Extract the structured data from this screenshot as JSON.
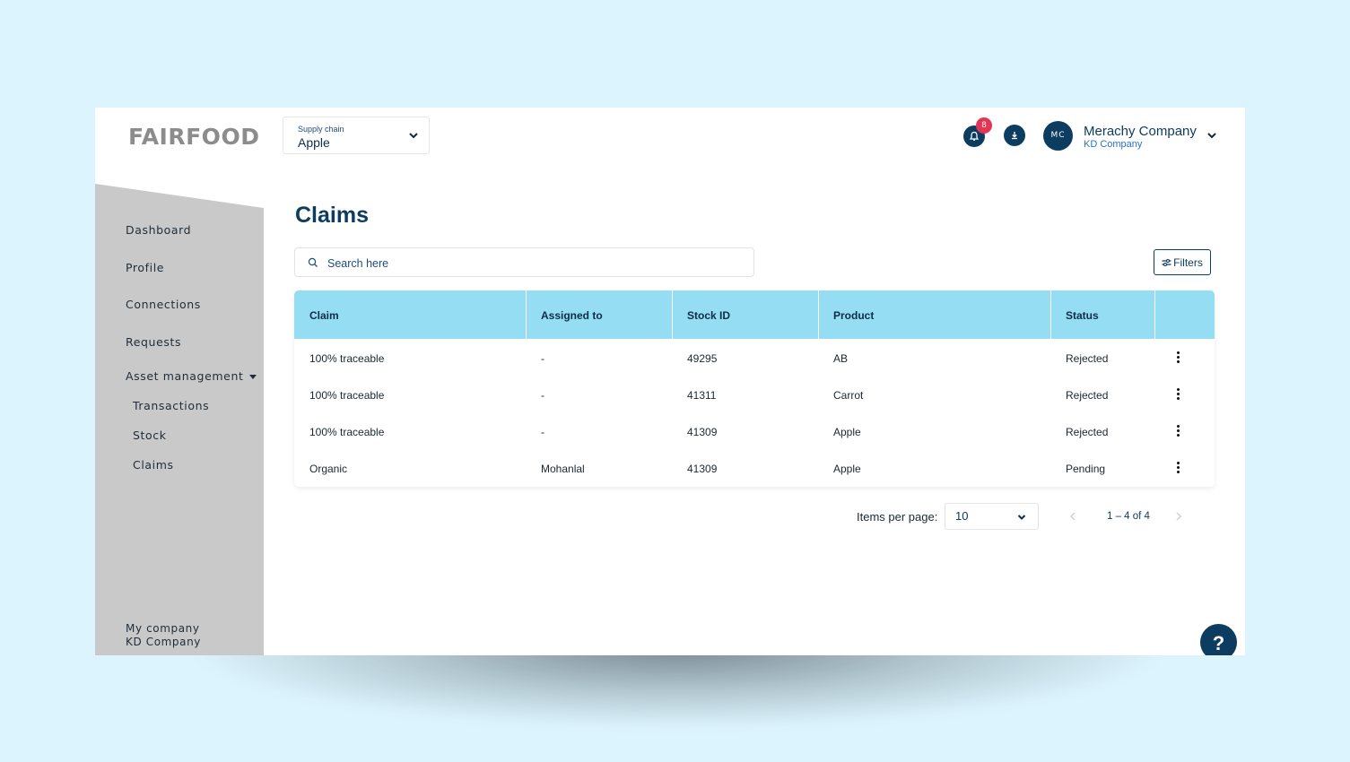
{
  "brand": {
    "logo_text": "FAIRFOOD"
  },
  "supply_chain": {
    "label": "Supply chain",
    "value": "Apple"
  },
  "header": {
    "notification_count": "8",
    "avatar_initials": "MC",
    "company_name": "Merachy Company",
    "company_sub": "KD Company"
  },
  "sidebar": {
    "items": [
      {
        "label": "Dashboard"
      },
      {
        "label": "Profile"
      },
      {
        "label": "Connections"
      },
      {
        "label": "Requests"
      },
      {
        "label": "Asset management"
      },
      {
        "label": "Transactions"
      },
      {
        "label": "Stock"
      },
      {
        "label": "Claims"
      }
    ],
    "footer_label": "My company",
    "footer_company": "KD Company"
  },
  "main": {
    "title": "Claims",
    "search_placeholder": "Search here",
    "filters_label": "Filters",
    "table": {
      "headers": [
        "Claim",
        "Assigned to",
        "Stock ID",
        "Product",
        "Status"
      ],
      "rows": [
        [
          "100% traceable",
          "-",
          "49295",
          "AB",
          "Rejected"
        ],
        [
          "100% traceable",
          "-",
          "41311",
          "Carrot",
          "Rejected"
        ],
        [
          "100% traceable",
          "-",
          "41309",
          "Apple",
          "Rejected"
        ],
        [
          "Organic",
          "Mohanlal",
          "41309",
          "Apple",
          "Pending"
        ]
      ]
    },
    "pagination": {
      "items_per_page_label": "Items per page:",
      "items_per_page_value": "10",
      "range_label": "1 – 4 of 4"
    }
  },
  "help": {
    "label": "?"
  },
  "colors": {
    "background": "#dcf4fd",
    "primary": "#0c3d60",
    "table_header": "#94ddf3",
    "sidebar": "#c9c9c9",
    "badge": "#e53554"
  },
  "icons": {
    "notifications": "bell-icon",
    "download": "download-icon",
    "search": "search-icon",
    "filters": "sliders-icon",
    "row_actions": "kebab-menu-icon",
    "help": "question-icon"
  }
}
